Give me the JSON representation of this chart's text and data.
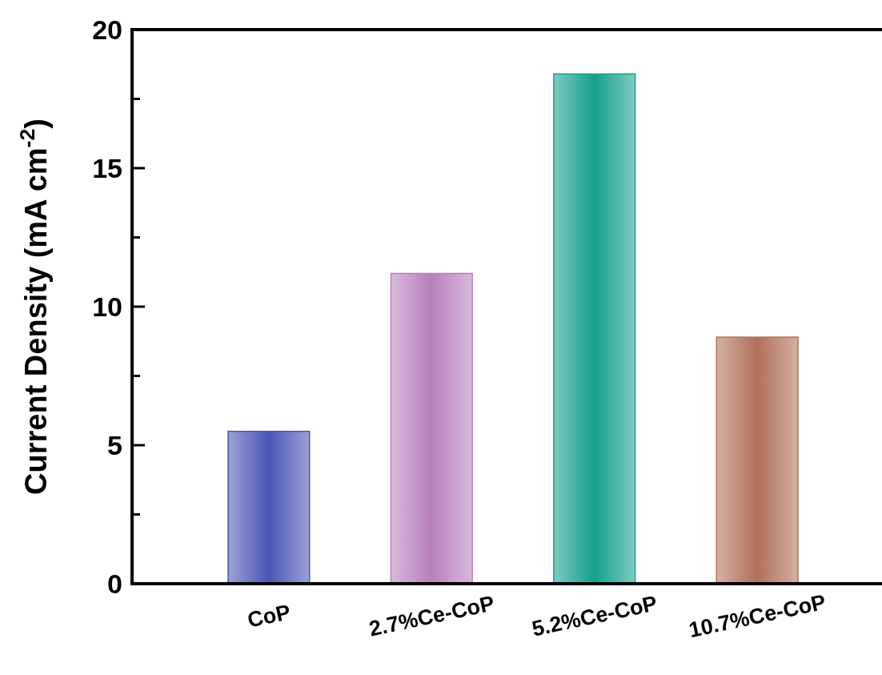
{
  "chart_data": {
    "type": "bar",
    "categories": [
      "CoP",
      "2.7%Ce-CoP",
      "5.2%Ce-CoP",
      "10.7%Ce-CoP"
    ],
    "values": [
      5.5,
      11.2,
      18.4,
      8.9
    ],
    "colors": [
      "#4a55b5",
      "#b87fbd",
      "#14a08c",
      "#b0705a"
    ],
    "ylabel": "Current Density (mA cm$^{-2}$)",
    "ylim": [
      0,
      20
    ],
    "yticks": [
      0,
      {
        "value": 2.5,
        "label": null
      },
      5,
      {
        "value": 7.5,
        "label": null
      },
      10,
      {
        "value": 12.5,
        "label": null
      },
      15,
      {
        "value": 17.5,
        "label": null
      },
      20
    ],
    "grid": false
  }
}
